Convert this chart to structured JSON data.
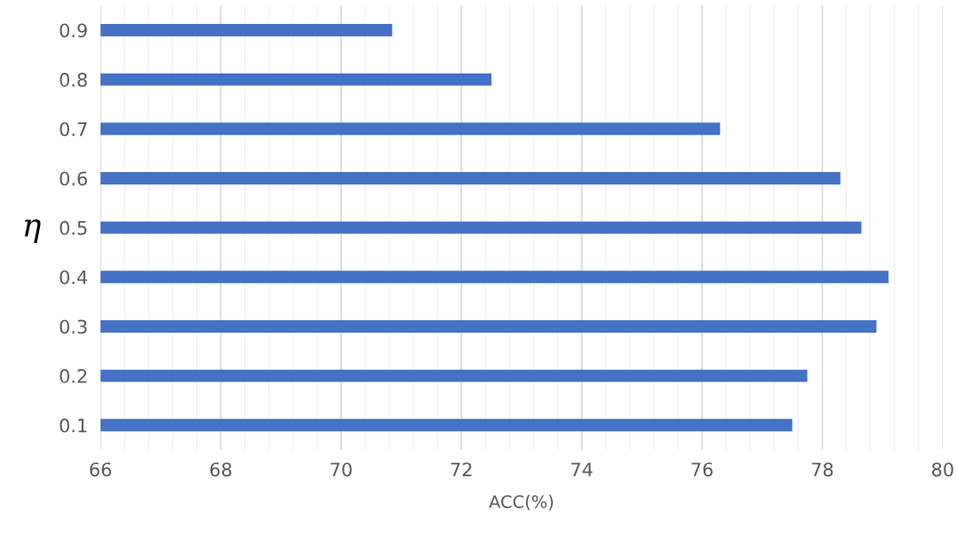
{
  "chart_data": {
    "type": "bar",
    "orientation": "horizontal",
    "xlabel": "ACC(%)",
    "ylabel": "η",
    "categories": [
      "0.9",
      "0.8",
      "0.7",
      "0.6",
      "0.5",
      "0.4",
      "0.3",
      "0.2",
      "0.1"
    ],
    "values": [
      70.85,
      72.5,
      76.3,
      78.3,
      78.65,
      79.1,
      78.9,
      77.75,
      77.5
    ],
    "color": "#4472c4",
    "xlim": [
      66,
      80
    ],
    "xticks": [
      66,
      68,
      70,
      72,
      74,
      76,
      78,
      80
    ],
    "grid": "x"
  }
}
